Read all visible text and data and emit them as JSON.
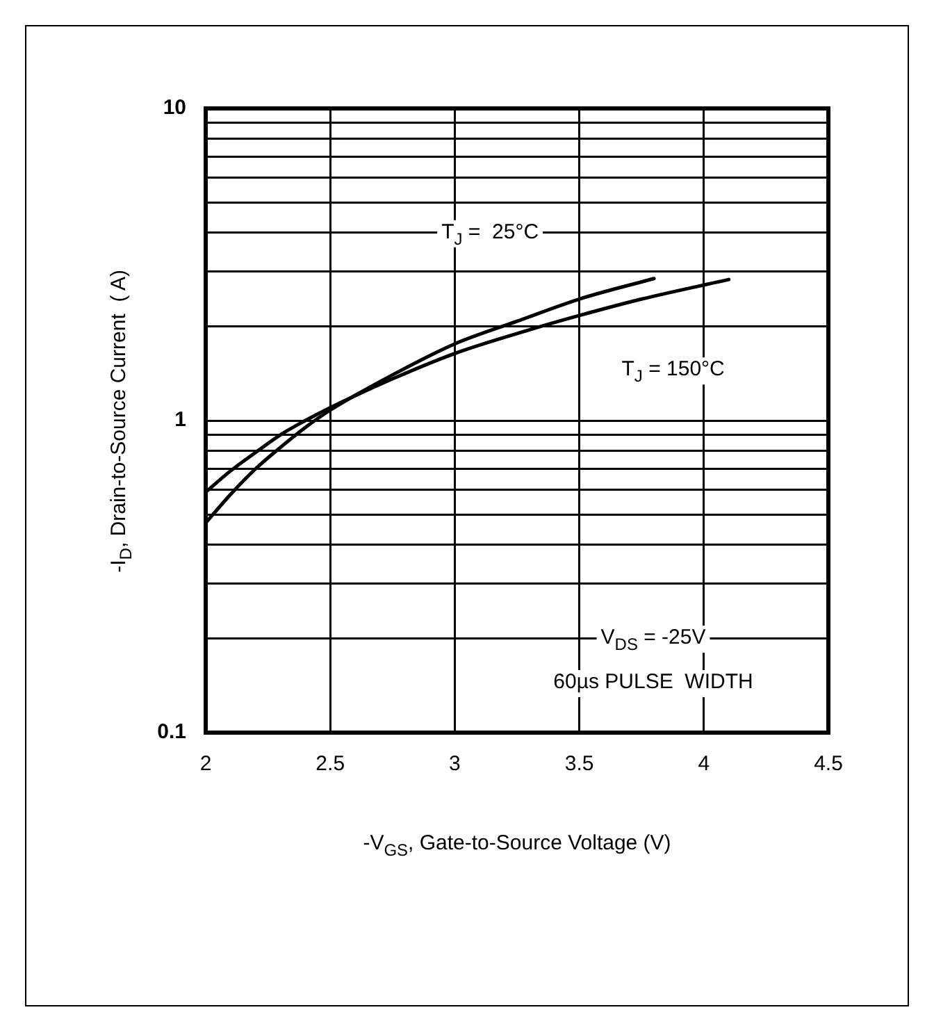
{
  "chart_data": {
    "type": "line",
    "xlabel": "-V$_{GS}$, Gate-to-Source Voltage (V)",
    "ylabel": "-I$_{D}$, Drain-to-Source Current  ( A)",
    "log": "y",
    "xlim": [
      2,
      4.5
    ],
    "xticks": [
      2,
      2.5,
      3,
      3.5,
      4,
      4.5
    ],
    "ylim": [
      0.1,
      10
    ],
    "yticks": [
      0.1,
      {
        "value": 0.2,
        "label": null
      },
      {
        "value": 0.3,
        "label": null
      },
      {
        "value": 0.4,
        "label": null
      },
      {
        "value": 0.5,
        "label": null
      },
      {
        "value": 0.6,
        "label": null
      },
      {
        "value": 0.7,
        "label": null
      },
      {
        "value": 0.8,
        "label": null
      },
      {
        "value": 0.9,
        "label": null
      },
      1,
      {
        "value": 2,
        "label": null
      },
      {
        "value": 3,
        "label": null
      },
      {
        "value": 4,
        "label": null
      },
      {
        "value": 5,
        "label": null
      },
      {
        "value": 6,
        "label": null
      },
      {
        "value": 7,
        "label": null
      },
      {
        "value": 8,
        "label": null
      },
      {
        "value": 9,
        "label": null
      },
      10
    ],
    "grid": true,
    "legend": false,
    "marker": "none",
    "line_style": "solid",
    "series": [
      {
        "name": "T$_{J}$ =  25°C",
        "color": "#000000",
        "x": [
          2,
          2.1,
          2.2,
          2.3,
          2.4,
          2.5,
          2.75,
          3,
          3.25,
          3.5,
          3.8
        ],
        "values": [
          0.47,
          0.58,
          0.7,
          0.82,
          0.95,
          1.08,
          1.4,
          1.76,
          2.08,
          2.45,
          2.85
        ]
      },
      {
        "name": "T$_{J}$ = 150°C",
        "color": "#000000",
        "x": [
          2,
          2.1,
          2.2,
          2.3,
          2.4,
          2.5,
          2.75,
          3,
          3.25,
          3.5,
          3.75,
          4.1
        ],
        "values": [
          0.59,
          0.69,
          0.79,
          0.9,
          1.0,
          1.1,
          1.36,
          1.64,
          1.9,
          2.17,
          2.45,
          2.83
        ]
      }
    ],
    "annotations": [
      "V$_{DS}$ = -25V",
      "60µs PULSE  WIDTH"
    ]
  }
}
